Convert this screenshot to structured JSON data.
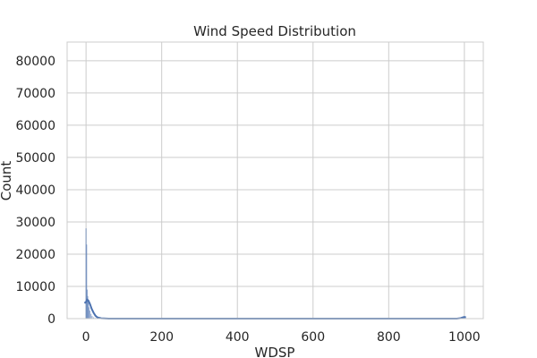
{
  "chart_data": {
    "type": "bar",
    "title": "Wind Speed Distribution",
    "xlabel": "WDSP",
    "ylabel": "Count",
    "xlim": [
      -50,
      1050
    ],
    "ylim": [
      0,
      85800
    ],
    "x_ticks": [
      0,
      200,
      400,
      600,
      800,
      1000
    ],
    "y_ticks": [
      0,
      10000,
      20000,
      30000,
      40000,
      50000,
      60000,
      70000,
      80000
    ],
    "grid": true,
    "histogram_bins": [
      {
        "x": 0.0,
        "count": 28000
      },
      {
        "x": 1.5,
        "count": 23000
      },
      {
        "x": 3.0,
        "count": 9000
      },
      {
        "x": 4.5,
        "count": 7000
      },
      {
        "x": 6.0,
        "count": 5000
      },
      {
        "x": 8.0,
        "count": 3500
      },
      {
        "x": 10.0,
        "count": 2500
      },
      {
        "x": 13.0,
        "count": 1500
      },
      {
        "x": 16.0,
        "count": 800
      },
      {
        "x": 20.0,
        "count": 400
      },
      {
        "x": 25.0,
        "count": 200
      },
      {
        "x": 999.9,
        "count": 500
      }
    ],
    "kde_curve": [
      {
        "x": -4,
        "y": 4800
      },
      {
        "x": 0,
        "y": 5200
      },
      {
        "x": 3,
        "y": 5900
      },
      {
        "x": 6,
        "y": 5600
      },
      {
        "x": 10,
        "y": 4600
      },
      {
        "x": 15,
        "y": 3000
      },
      {
        "x": 20,
        "y": 1800
      },
      {
        "x": 25,
        "y": 900
      },
      {
        "x": 30,
        "y": 400
      },
      {
        "x": 40,
        "y": 100
      },
      {
        "x": 60,
        "y": 0
      },
      {
        "x": 980,
        "y": 0
      },
      {
        "x": 990,
        "y": 150
      },
      {
        "x": 996,
        "y": 400
      },
      {
        "x": 1000,
        "y": 500
      },
      {
        "x": 1004,
        "y": 400
      }
    ],
    "colors": {
      "bar": "#4c72b0",
      "line": "#4c72b0",
      "grid": "#cccccc",
      "frame": "#cccccc"
    }
  }
}
